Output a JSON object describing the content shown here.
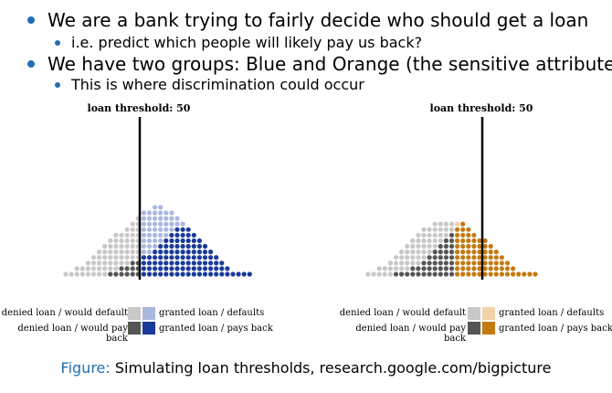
{
  "bullets": [
    {
      "text": "We are a bank trying to fairly decide who should get a loan",
      "sub": "i.e. predict which people will likely pay us back?"
    },
    {
      "text": "We have two groups: Blue and Orange (the sensitive attribute)",
      "sub": "This is where discrimination could occur"
    }
  ],
  "simulations": [
    {
      "group": "blue",
      "threshold_label": "loan threshold: 50",
      "colors": {
        "denied_default": "#c8c8c8",
        "denied_payback": "#555555",
        "granted_default": "#aab8e0",
        "granted_payback": "#1a3a9a"
      },
      "legend": {
        "denied_default": "denied loan / would default",
        "denied_payback": "denied loan / would pay back",
        "granted_default": "granted loan / defaults",
        "granted_payback": "granted loan / pays back"
      }
    },
    {
      "group": "orange",
      "threshold_label": "loan threshold: 50",
      "colors": {
        "denied_default": "#c8c8c8",
        "denied_payback": "#555555",
        "granted_default": "#f2d2aa",
        "granted_payback": "#c47a10"
      },
      "legend": {
        "denied_default": "denied loan / would default",
        "denied_payback": "denied loan / would pay back",
        "granted_default": "granted loan / defaults",
        "granted_payback": "granted loan / pays back"
      }
    }
  ],
  "caption": {
    "label": "Figure:",
    "text": "Simulating loan thresholds, research.google.com/bigpicture"
  }
}
